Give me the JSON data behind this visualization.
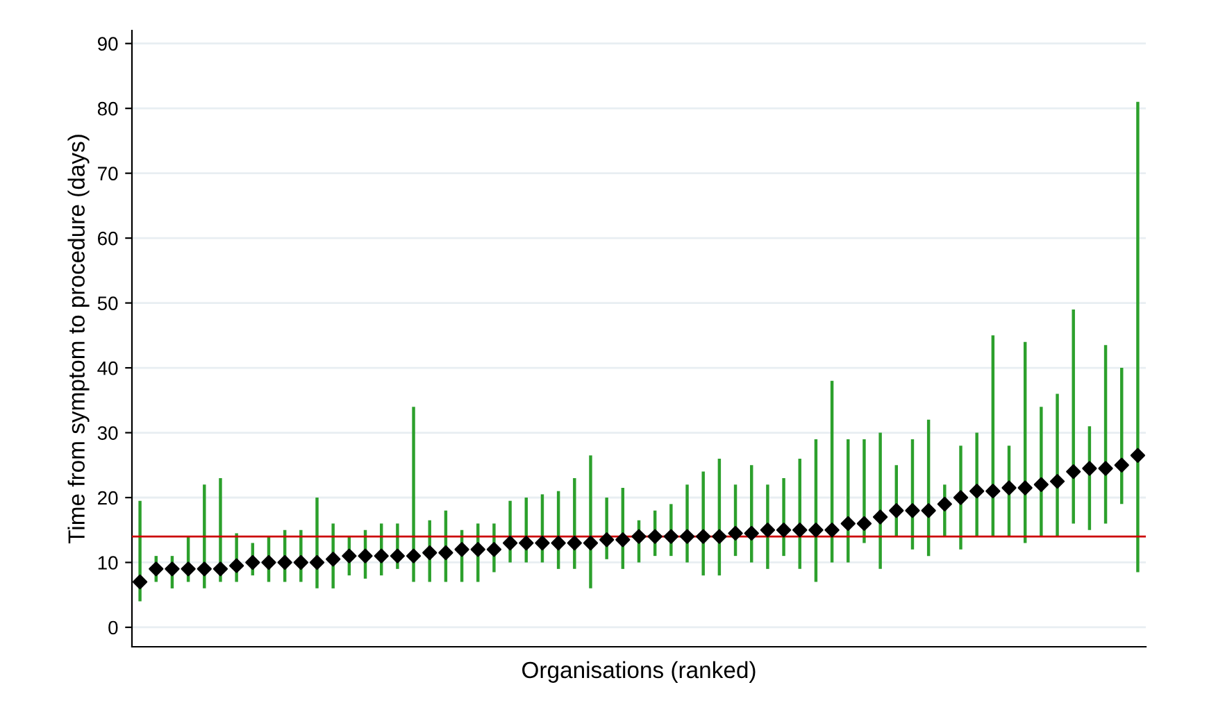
{
  "chart_data": {
    "type": "scatter",
    "xlabel": "Organisations (ranked)",
    "ylabel": "Time from symptom to procedure (days)",
    "categories": [
      null,
      null,
      null,
      null,
      null,
      null,
      null,
      null,
      null,
      null,
      null,
      null,
      null,
      null,
      null,
      null,
      null,
      null,
      null,
      null,
      null,
      null,
      null,
      null,
      null,
      null,
      null,
      null,
      null,
      null,
      null,
      null,
      null,
      null,
      null,
      null,
      null,
      null,
      null,
      null,
      null,
      null,
      null,
      null,
      null,
      null,
      null,
      null,
      null,
      null,
      null,
      null,
      null,
      null,
      null,
      null,
      null,
      null,
      null,
      null,
      null,
      null,
      null
    ],
    "series": [
      {
        "color": "#000000",
        "values": [
          7,
          9,
          9,
          9,
          9,
          9,
          9.5,
          10,
          10,
          10,
          10,
          10,
          10.5,
          11,
          11,
          11,
          11,
          11,
          11.5,
          11.5,
          12,
          12,
          12,
          13,
          13,
          13,
          13,
          13,
          13,
          13.5,
          13.5,
          14,
          14,
          14,
          14,
          14,
          14,
          14.5,
          14.5,
          15,
          15,
          15,
          15,
          15,
          16,
          16,
          17,
          18,
          18,
          18,
          19,
          20,
          21,
          21,
          21.5,
          21.5,
          22,
          22.5,
          24,
          24.5,
          24.5,
          25,
          26.5
        ],
        "errors": [
          [
            4,
            19.5
          ],
          [
            7,
            11
          ],
          [
            6,
            11
          ],
          [
            7,
            14
          ],
          [
            6,
            22
          ],
          [
            7,
            23
          ],
          [
            7,
            14.5
          ],
          [
            8,
            13
          ],
          [
            7,
            14
          ],
          [
            7,
            15
          ],
          [
            7,
            15
          ],
          [
            6,
            20
          ],
          [
            6,
            16
          ],
          [
            8,
            14
          ],
          [
            7.5,
            15
          ],
          [
            8,
            16
          ],
          [
            9,
            16
          ],
          [
            7,
            34
          ],
          [
            7,
            16.5
          ],
          [
            7,
            18
          ],
          [
            7,
            15
          ],
          [
            7,
            16
          ],
          [
            8.5,
            16
          ],
          [
            10,
            19.5
          ],
          [
            10,
            20
          ],
          [
            10,
            20.5
          ],
          [
            9,
            21
          ],
          [
            9,
            23
          ],
          [
            6,
            26.5
          ],
          [
            10.5,
            20
          ],
          [
            9,
            21.5
          ],
          [
            10,
            16.5
          ],
          [
            11,
            18
          ],
          [
            11,
            19
          ],
          [
            10,
            22
          ],
          [
            8,
            24
          ],
          [
            8,
            26
          ],
          [
            11,
            22
          ],
          [
            10,
            25
          ],
          [
            9,
            22
          ],
          [
            11,
            23
          ],
          [
            9,
            26
          ],
          [
            7,
            29
          ],
          [
            10,
            38
          ],
          [
            10,
            29
          ],
          [
            13,
            29
          ],
          [
            9,
            30
          ],
          [
            14,
            25
          ],
          [
            12,
            29
          ],
          [
            11,
            32
          ],
          [
            14,
            22
          ],
          [
            12,
            28
          ],
          [
            14,
            30
          ],
          [
            14,
            45
          ],
          [
            14,
            28
          ],
          [
            13,
            44
          ],
          [
            14,
            34
          ],
          [
            14,
            36
          ],
          [
            16,
            49
          ],
          [
            15,
            31
          ],
          [
            16,
            43.5
          ],
          [
            19,
            40
          ],
          [
            8.5,
            81
          ]
        ]
      }
    ],
    "marker": "diamond",
    "ylim": [
      -3,
      92
    ],
    "yticks": [
      0,
      10,
      20,
      30,
      40,
      50,
      60,
      70,
      80,
      90
    ],
    "grid": "y",
    "legend": false,
    "ref_lines": [
      {
        "axis": "y",
        "value": 14,
        "color": "#cc0000"
      }
    ]
  }
}
